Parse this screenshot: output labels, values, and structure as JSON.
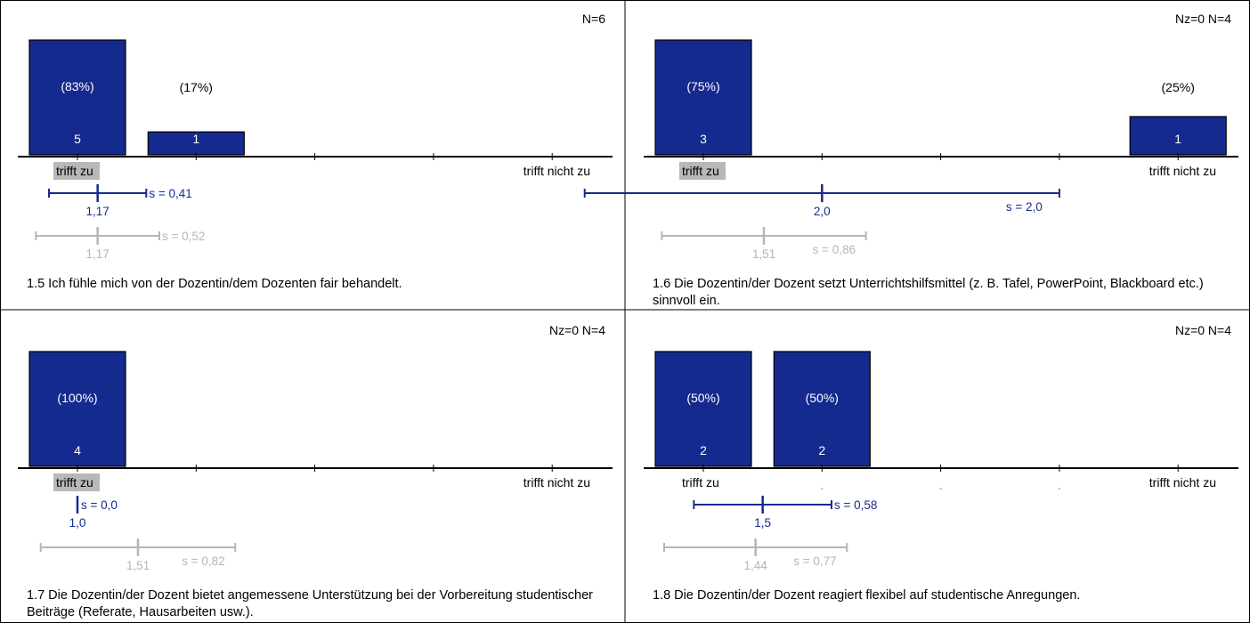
{
  "colors": {
    "bar": "#152a8e",
    "bar_text": "#ffffff",
    "own_stat": "#152a8e",
    "ref_stat": "#b5b5b5",
    "highlight": "#b8b8b8",
    "frame": "#000000"
  },
  "chart_data": [
    {
      "type": "bar",
      "question": "1.5 Ich fühle mich von der Dozentin/dem Dozenten fair behandelt.",
      "counts_label": "N=6",
      "categories": [
        1,
        2,
        3,
        4,
        5
      ],
      "category_label_left": "trifft zu",
      "category_label_right": "trifft nicht zu",
      "highlight_label": "left",
      "ylim": [
        0,
        5
      ],
      "values": [
        5,
        1,
        0,
        0,
        0
      ],
      "value_labels": [
        "5",
        "1",
        "",
        "",
        ""
      ],
      "percent_labels": [
        "(83%)",
        "(17%)",
        "",
        "",
        ""
      ],
      "mean": {
        "value": 1.17,
        "label": "1,17",
        "sd": 0.41,
        "sd_label": "s = 0,41"
      },
      "reference": {
        "value": 1.17,
        "label": "1,17",
        "sd": 0.52,
        "sd_label": "s = 0,52"
      }
    },
    {
      "type": "bar",
      "question": "1.6 Die Dozentin/der Dozent setzt Unterrichtshilfsmittel (z. B. Tafel, PowerPoint, Blackboard etc.) sinnvoll ein.",
      "counts_label": "Nz=0  N=4",
      "categories": [
        1,
        2,
        3,
        4,
        5
      ],
      "category_label_left": "trifft zu",
      "category_label_right": "trifft nicht zu",
      "highlight_label": "left",
      "ylim": [
        0,
        3
      ],
      "values": [
        3,
        0,
        0,
        0,
        1
      ],
      "value_labels": [
        "3",
        "",
        "",
        "",
        "1"
      ],
      "percent_labels": [
        "(75%)",
        "",
        "",
        "",
        "(25%)"
      ],
      "mean": {
        "value": 2.0,
        "label": "2,0",
        "sd": 2.0,
        "sd_label": "s = 2,0"
      },
      "reference": {
        "value": 1.51,
        "label": "1,51",
        "sd": 0.86,
        "sd_label": "s = 0,86"
      }
    },
    {
      "type": "bar",
      "question": "1.7 Die Dozentin/der Dozent bietet angemessene Unterstützung bei der Vorbereitung studentischer Beiträge (Referate, Hausarbeiten usw.).",
      "counts_label": "Nz=0  N=4",
      "categories": [
        1,
        2,
        3,
        4,
        5
      ],
      "category_label_left": "trifft zu",
      "category_label_right": "trifft nicht zu",
      "highlight_label": "left",
      "ylim": [
        0,
        4
      ],
      "values": [
        4,
        0,
        0,
        0,
        0
      ],
      "value_labels": [
        "4",
        "",
        "",
        "",
        ""
      ],
      "percent_labels": [
        "(100%)",
        "",
        "",
        "",
        ""
      ],
      "mean": {
        "value": 1.0,
        "label": "1,0",
        "sd": 0.0,
        "sd_label": "s = 0,0"
      },
      "reference": {
        "value": 1.51,
        "label": "1,51",
        "sd": 0.82,
        "sd_label": "s = 0,82"
      }
    },
    {
      "type": "bar",
      "question": "1.8 Die Dozentin/der Dozent reagiert flexibel auf studentische Anregungen.",
      "counts_label": "Nz=0  N=4",
      "categories": [
        1,
        2,
        3,
        4,
        5
      ],
      "category_label_left": "trifft zu",
      "category_label_right": "trifft nicht zu",
      "highlight_label": "none",
      "ylim": [
        0,
        2
      ],
      "values": [
        2,
        2,
        0,
        0,
        0
      ],
      "value_labels": [
        "2",
        "2",
        "",
        "",
        ""
      ],
      "percent_labels": [
        "(50%)",
        "(50%)",
        "",
        "",
        ""
      ],
      "mean": {
        "value": 1.5,
        "label": "1,5",
        "sd": 0.58,
        "sd_label": "s = 0,58"
      },
      "reference": {
        "value": 1.44,
        "label": "1,44",
        "sd": 0.77,
        "sd_label": "s = 0,77"
      }
    }
  ]
}
